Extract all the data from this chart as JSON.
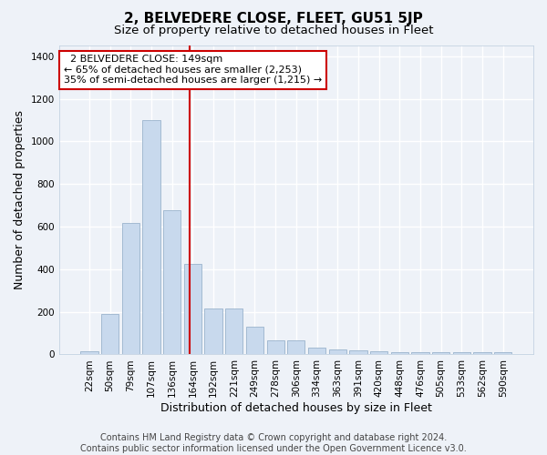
{
  "title": "2, BELVEDERE CLOSE, FLEET, GU51 5JP",
  "subtitle": "Size of property relative to detached houses in Fleet",
  "xlabel": "Distribution of detached houses by size in Fleet",
  "ylabel": "Number of detached properties",
  "categories": [
    "22sqm",
    "50sqm",
    "79sqm",
    "107sqm",
    "136sqm",
    "164sqm",
    "192sqm",
    "221sqm",
    "249sqm",
    "278sqm",
    "306sqm",
    "334sqm",
    "363sqm",
    "391sqm",
    "420sqm",
    "448sqm",
    "476sqm",
    "505sqm",
    "533sqm",
    "562sqm",
    "590sqm"
  ],
  "values": [
    15,
    190,
    615,
    1100,
    675,
    425,
    215,
    215,
    130,
    65,
    65,
    30,
    25,
    20,
    15,
    12,
    12,
    10,
    10,
    10,
    10
  ],
  "bar_color": "#c8d9ed",
  "bar_edge_color": "#9ab3cc",
  "red_line_x": 4.87,
  "red_line_color": "#cc0000",
  "ylim": [
    0,
    1450
  ],
  "yticks": [
    0,
    200,
    400,
    600,
    800,
    1000,
    1200,
    1400
  ],
  "annotation_text": "  2 BELVEDERE CLOSE: 149sqm  \n← 65% of detached houses are smaller (2,253)\n35% of semi-detached houses are larger (1,215) →",
  "annotation_box_color": "#ffffff",
  "annotation_box_edge_color": "#cc0000",
  "footer_line1": "Contains HM Land Registry data © Crown copyright and database right 2024.",
  "footer_line2": "Contains public sector information licensed under the Open Government Licence v3.0.",
  "background_color": "#eef2f8",
  "grid_color": "#ffffff",
  "title_fontsize": 11,
  "subtitle_fontsize": 9.5,
  "axis_label_fontsize": 9,
  "tick_fontsize": 7.5,
  "annotation_fontsize": 8,
  "footer_fontsize": 7
}
